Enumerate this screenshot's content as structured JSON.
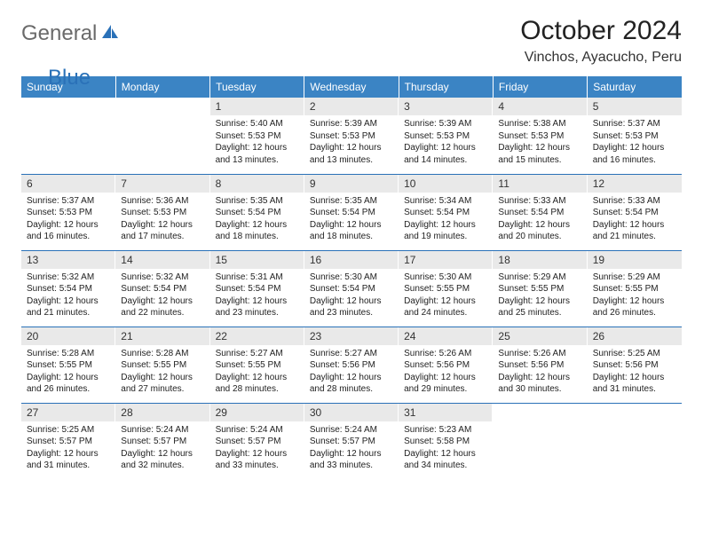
{
  "logo": {
    "general": "General",
    "blue": "Blue"
  },
  "title": "October 2024",
  "location": "Vinchos, Ayacucho, Peru",
  "header_bg": "#3b84c4",
  "header_fg": "#ffffff",
  "daynum_bg": "#e9e9e9",
  "border_color": "#2a71b8",
  "days_of_week": [
    "Sunday",
    "Monday",
    "Tuesday",
    "Wednesday",
    "Thursday",
    "Friday",
    "Saturday"
  ],
  "weeks": [
    [
      null,
      null,
      {
        "n": "1",
        "sr": "5:40 AM",
        "ss": "5:53 PM",
        "dl": "12 hours and 13 minutes."
      },
      {
        "n": "2",
        "sr": "5:39 AM",
        "ss": "5:53 PM",
        "dl": "12 hours and 13 minutes."
      },
      {
        "n": "3",
        "sr": "5:39 AM",
        "ss": "5:53 PM",
        "dl": "12 hours and 14 minutes."
      },
      {
        "n": "4",
        "sr": "5:38 AM",
        "ss": "5:53 PM",
        "dl": "12 hours and 15 minutes."
      },
      {
        "n": "5",
        "sr": "5:37 AM",
        "ss": "5:53 PM",
        "dl": "12 hours and 16 minutes."
      }
    ],
    [
      {
        "n": "6",
        "sr": "5:37 AM",
        "ss": "5:53 PM",
        "dl": "12 hours and 16 minutes."
      },
      {
        "n": "7",
        "sr": "5:36 AM",
        "ss": "5:53 PM",
        "dl": "12 hours and 17 minutes."
      },
      {
        "n": "8",
        "sr": "5:35 AM",
        "ss": "5:54 PM",
        "dl": "12 hours and 18 minutes."
      },
      {
        "n": "9",
        "sr": "5:35 AM",
        "ss": "5:54 PM",
        "dl": "12 hours and 18 minutes."
      },
      {
        "n": "10",
        "sr": "5:34 AM",
        "ss": "5:54 PM",
        "dl": "12 hours and 19 minutes."
      },
      {
        "n": "11",
        "sr": "5:33 AM",
        "ss": "5:54 PM",
        "dl": "12 hours and 20 minutes."
      },
      {
        "n": "12",
        "sr": "5:33 AM",
        "ss": "5:54 PM",
        "dl": "12 hours and 21 minutes."
      }
    ],
    [
      {
        "n": "13",
        "sr": "5:32 AM",
        "ss": "5:54 PM",
        "dl": "12 hours and 21 minutes."
      },
      {
        "n": "14",
        "sr": "5:32 AM",
        "ss": "5:54 PM",
        "dl": "12 hours and 22 minutes."
      },
      {
        "n": "15",
        "sr": "5:31 AM",
        "ss": "5:54 PM",
        "dl": "12 hours and 23 minutes."
      },
      {
        "n": "16",
        "sr": "5:30 AM",
        "ss": "5:54 PM",
        "dl": "12 hours and 23 minutes."
      },
      {
        "n": "17",
        "sr": "5:30 AM",
        "ss": "5:55 PM",
        "dl": "12 hours and 24 minutes."
      },
      {
        "n": "18",
        "sr": "5:29 AM",
        "ss": "5:55 PM",
        "dl": "12 hours and 25 minutes."
      },
      {
        "n": "19",
        "sr": "5:29 AM",
        "ss": "5:55 PM",
        "dl": "12 hours and 26 minutes."
      }
    ],
    [
      {
        "n": "20",
        "sr": "5:28 AM",
        "ss": "5:55 PM",
        "dl": "12 hours and 26 minutes."
      },
      {
        "n": "21",
        "sr": "5:28 AM",
        "ss": "5:55 PM",
        "dl": "12 hours and 27 minutes."
      },
      {
        "n": "22",
        "sr": "5:27 AM",
        "ss": "5:55 PM",
        "dl": "12 hours and 28 minutes."
      },
      {
        "n": "23",
        "sr": "5:27 AM",
        "ss": "5:56 PM",
        "dl": "12 hours and 28 minutes."
      },
      {
        "n": "24",
        "sr": "5:26 AM",
        "ss": "5:56 PM",
        "dl": "12 hours and 29 minutes."
      },
      {
        "n": "25",
        "sr": "5:26 AM",
        "ss": "5:56 PM",
        "dl": "12 hours and 30 minutes."
      },
      {
        "n": "26",
        "sr": "5:25 AM",
        "ss": "5:56 PM",
        "dl": "12 hours and 31 minutes."
      }
    ],
    [
      {
        "n": "27",
        "sr": "5:25 AM",
        "ss": "5:57 PM",
        "dl": "12 hours and 31 minutes."
      },
      {
        "n": "28",
        "sr": "5:24 AM",
        "ss": "5:57 PM",
        "dl": "12 hours and 32 minutes."
      },
      {
        "n": "29",
        "sr": "5:24 AM",
        "ss": "5:57 PM",
        "dl": "12 hours and 33 minutes."
      },
      {
        "n": "30",
        "sr": "5:24 AM",
        "ss": "5:57 PM",
        "dl": "12 hours and 33 minutes."
      },
      {
        "n": "31",
        "sr": "5:23 AM",
        "ss": "5:58 PM",
        "dl": "12 hours and 34 minutes."
      },
      null,
      null
    ]
  ],
  "labels": {
    "sunrise": "Sunrise:",
    "sunset": "Sunset:",
    "daylight": "Daylight:"
  }
}
